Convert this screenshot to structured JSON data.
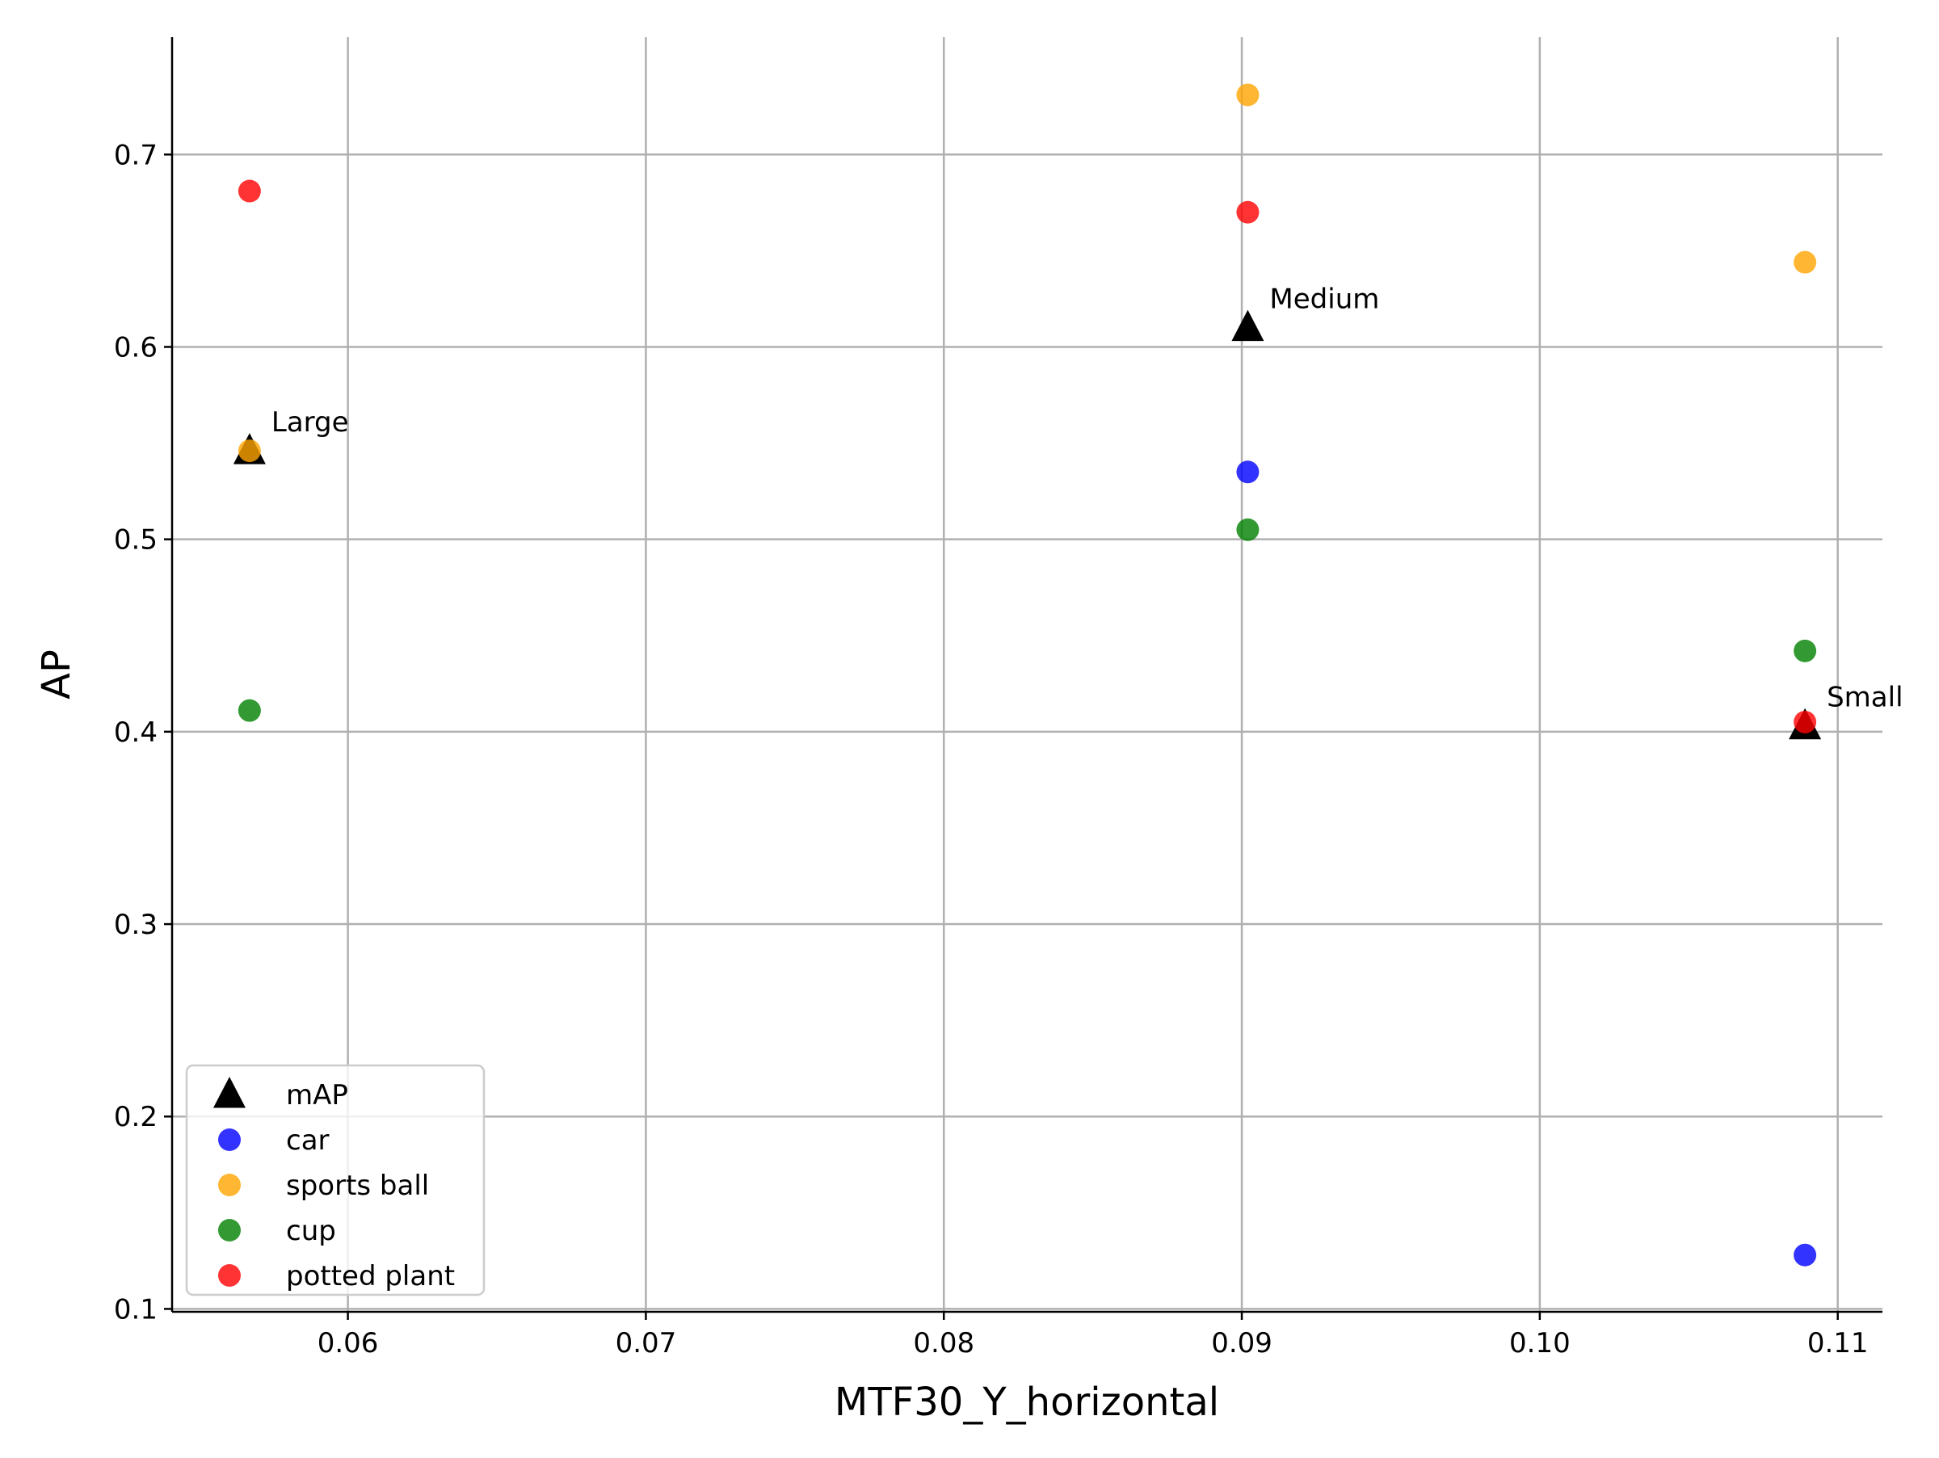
{
  "chart_data": {
    "type": "scatter",
    "title": "",
    "xlabel": "MTF30_Y_horizontal",
    "ylabel": "AP",
    "xlim": [
      0.0541,
      0.1115
    ],
    "ylim": [
      0.0985,
      0.761
    ],
    "x_ticks": [
      0.06,
      0.07,
      0.08,
      0.09,
      0.1,
      0.11
    ],
    "x_tick_labels": [
      "0.06",
      "0.07",
      "0.08",
      "0.09",
      "0.10",
      "0.11"
    ],
    "y_ticks": [
      0.1,
      0.2,
      0.3,
      0.4,
      0.5,
      0.6,
      0.7
    ],
    "y_tick_labels": [
      "0.1",
      "0.2",
      "0.3",
      "0.4",
      "0.5",
      "0.6",
      "0.7"
    ],
    "grid": true,
    "legend_placement": "lower-left",
    "series": [
      {
        "name": "mAP",
        "marker": "triangle",
        "color": "#000000",
        "points": [
          {
            "x": 0.0567,
            "y": 0.546,
            "label": "Large"
          },
          {
            "x": 0.0902,
            "y": 0.61,
            "label": "Medium"
          },
          {
            "x": 0.1089,
            "y": 0.403,
            "label": "Small"
          }
        ]
      },
      {
        "name": "car",
        "marker": "circle",
        "color": "#0000ff",
        "points": [
          {
            "x": 0.0902,
            "y": 0.535
          },
          {
            "x": 0.1089,
            "y": 0.128
          }
        ]
      },
      {
        "name": "sports ball",
        "marker": "circle",
        "color": "#ffa500",
        "points": [
          {
            "x": 0.0567,
            "y": 0.546
          },
          {
            "x": 0.0902,
            "y": 0.731
          },
          {
            "x": 0.1089,
            "y": 0.644
          }
        ]
      },
      {
        "name": "cup",
        "marker": "circle",
        "color": "#008000",
        "points": [
          {
            "x": 0.0567,
            "y": 0.411
          },
          {
            "x": 0.0902,
            "y": 0.505
          },
          {
            "x": 0.1089,
            "y": 0.442
          }
        ]
      },
      {
        "name": "potted plant",
        "marker": "circle",
        "color": "#ff0000",
        "points": [
          {
            "x": 0.0567,
            "y": 0.681
          },
          {
            "x": 0.0902,
            "y": 0.67
          },
          {
            "x": 0.1089,
            "y": 0.405
          }
        ]
      }
    ]
  }
}
